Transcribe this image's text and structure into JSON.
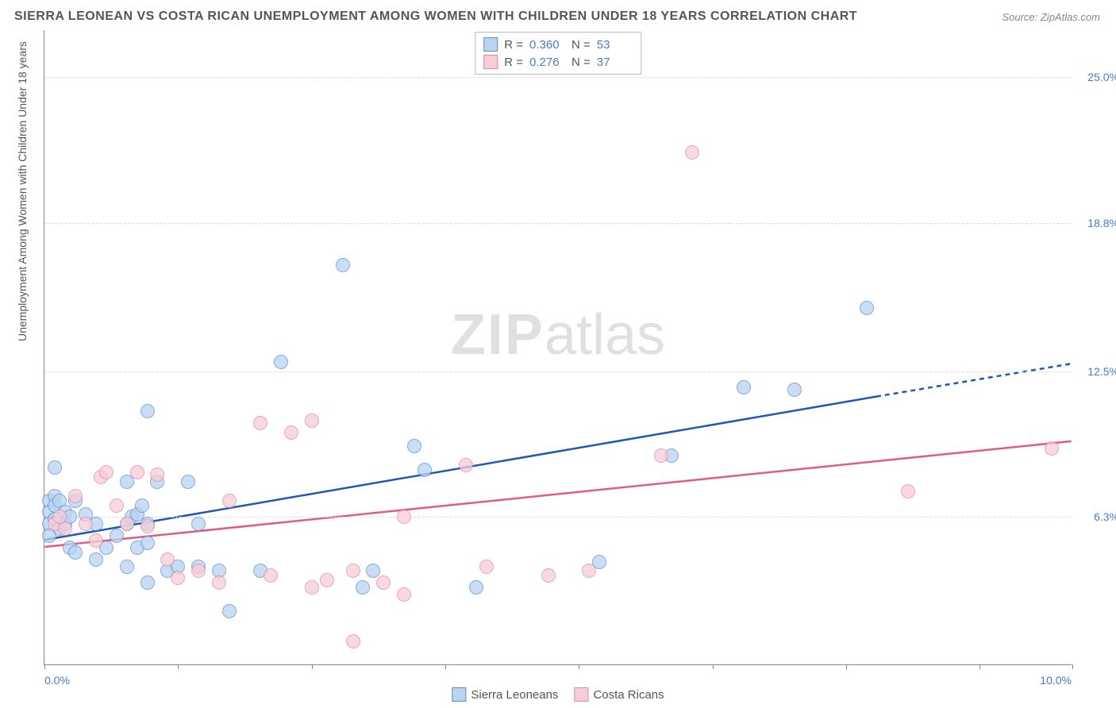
{
  "title": "SIERRA LEONEAN VS COSTA RICAN UNEMPLOYMENT AMONG WOMEN WITH CHILDREN UNDER 18 YEARS CORRELATION CHART",
  "source": "Source: ZipAtlas.com",
  "y_axis_label": "Unemployment Among Women with Children Under 18 years",
  "watermark_bold": "ZIP",
  "watermark_light": "atlas",
  "chart": {
    "type": "scatter",
    "xlim": [
      0,
      10
    ],
    "ylim": [
      0,
      27
    ],
    "x_ticks": [
      0,
      1.3,
      2.6,
      3.9,
      5.2,
      6.5,
      7.8,
      9.1,
      10
    ],
    "x_tick_labels": {
      "0": "0.0%",
      "10": "10.0%"
    },
    "y_ticks": [
      6.3,
      12.5,
      18.8,
      25.0
    ],
    "y_tick_labels": [
      "6.3%",
      "12.5%",
      "18.8%",
      "25.0%"
    ],
    "grid_color": "#dddddd",
    "background_color": "#ffffff",
    "axis_color": "#888888",
    "tick_label_color": "#4a7bc8",
    "point_radius": 9,
    "point_opacity": 0.75,
    "series": [
      {
        "name": "Sierra Leoneans",
        "fill": "#b9d4f0",
        "stroke": "#5b8fd6",
        "trend_color": "#2059b5",
        "trend_width": 2.5,
        "trend": {
          "x1": 0,
          "y1": 5.3,
          "x2": 8.1,
          "y2": 11.4,
          "extend_x": 10,
          "extend_y": 12.8
        },
        "R": "0.360",
        "N": "53",
        "points": [
          [
            0.05,
            7.0
          ],
          [
            0.05,
            6.5
          ],
          [
            0.05,
            6.0
          ],
          [
            0.05,
            5.5
          ],
          [
            0.1,
            8.4
          ],
          [
            0.1,
            7.2
          ],
          [
            0.1,
            6.8
          ],
          [
            0.1,
            6.2
          ],
          [
            0.15,
            7.0
          ],
          [
            0.15,
            5.8
          ],
          [
            0.2,
            6.5
          ],
          [
            0.2,
            6.0
          ],
          [
            0.25,
            6.3
          ],
          [
            0.25,
            5.0
          ],
          [
            0.3,
            7.0
          ],
          [
            0.3,
            4.8
          ],
          [
            0.4,
            6.4
          ],
          [
            0.5,
            6.0
          ],
          [
            0.5,
            4.5
          ],
          [
            0.6,
            5.0
          ],
          [
            0.7,
            5.5
          ],
          [
            0.8,
            7.8
          ],
          [
            0.8,
            6.0
          ],
          [
            0.8,
            4.2
          ],
          [
            0.85,
            6.3
          ],
          [
            0.9,
            6.4
          ],
          [
            0.9,
            5.0
          ],
          [
            0.95,
            6.8
          ],
          [
            1.0,
            10.8
          ],
          [
            1.0,
            6.0
          ],
          [
            1.0,
            5.2
          ],
          [
            1.0,
            3.5
          ],
          [
            1.1,
            7.8
          ],
          [
            1.2,
            4.0
          ],
          [
            1.3,
            4.2
          ],
          [
            1.4,
            7.8
          ],
          [
            1.5,
            6.0
          ],
          [
            1.5,
            4.2
          ],
          [
            1.7,
            4.0
          ],
          [
            1.8,
            2.3
          ],
          [
            2.1,
            4.0
          ],
          [
            2.3,
            12.9
          ],
          [
            2.9,
            17.0
          ],
          [
            3.1,
            3.3
          ],
          [
            3.2,
            4.0
          ],
          [
            3.6,
            9.3
          ],
          [
            3.7,
            8.3
          ],
          [
            4.2,
            3.3
          ],
          [
            5.4,
            4.4
          ],
          [
            6.1,
            8.9
          ],
          [
            6.8,
            11.8
          ],
          [
            7.3,
            11.7
          ],
          [
            8.0,
            15.2
          ]
        ]
      },
      {
        "name": "Costa Ricans",
        "fill": "#f7cdd8",
        "stroke": "#e389a3",
        "trend_color": "#e15b86",
        "trend_width": 2.5,
        "trend": {
          "x1": 0,
          "y1": 5.0,
          "x2": 10,
          "y2": 9.5
        },
        "R": "0.276",
        "N": "37",
        "points": [
          [
            0.1,
            6.0
          ],
          [
            0.15,
            6.3
          ],
          [
            0.2,
            5.8
          ],
          [
            0.3,
            7.2
          ],
          [
            0.4,
            6.0
          ],
          [
            0.5,
            5.3
          ],
          [
            0.55,
            8.0
          ],
          [
            0.6,
            8.2
          ],
          [
            0.7,
            6.8
          ],
          [
            0.8,
            6.0
          ],
          [
            0.9,
            8.2
          ],
          [
            1.0,
            5.9
          ],
          [
            1.1,
            8.1
          ],
          [
            1.2,
            4.5
          ],
          [
            1.3,
            3.7
          ],
          [
            1.5,
            4.0
          ],
          [
            1.7,
            3.5
          ],
          [
            1.8,
            7.0
          ],
          [
            2.1,
            10.3
          ],
          [
            2.2,
            3.8
          ],
          [
            2.4,
            9.9
          ],
          [
            2.6,
            10.4
          ],
          [
            2.6,
            3.3
          ],
          [
            2.75,
            3.6
          ],
          [
            3.0,
            4.0
          ],
          [
            3.0,
            1.0
          ],
          [
            3.3,
            3.5
          ],
          [
            3.5,
            6.3
          ],
          [
            3.5,
            3.0
          ],
          [
            4.1,
            8.5
          ],
          [
            4.3,
            4.2
          ],
          [
            4.9,
            3.8
          ],
          [
            5.3,
            4.0
          ],
          [
            6.0,
            8.9
          ],
          [
            6.3,
            21.8
          ],
          [
            8.4,
            7.4
          ],
          [
            9.8,
            9.2
          ]
        ]
      }
    ]
  },
  "legend_top": {
    "r_label": "R =",
    "n_label": "N ="
  },
  "legend_bottom": [
    {
      "label": "Sierra Leoneans",
      "fill": "#b9d4f0",
      "stroke": "#5b8fd6"
    },
    {
      "label": "Costa Ricans",
      "fill": "#f7cdd8",
      "stroke": "#e389a3"
    }
  ]
}
